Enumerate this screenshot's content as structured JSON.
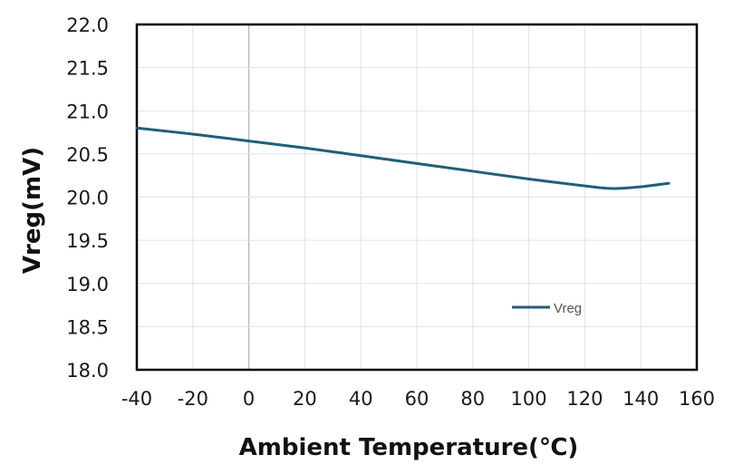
{
  "chart_data": {
    "type": "line",
    "xlabel": "Ambient Temperature(℃)",
    "ylabel": "Vreg(mV)",
    "xlim": [
      -40,
      160
    ],
    "ylim": [
      18.0,
      22.0
    ],
    "x_ticks": [
      "-40",
      "-20",
      "0",
      "20",
      "40",
      "60",
      "80",
      "100",
      "120",
      "140",
      "160"
    ],
    "y_ticks": [
      "18.0",
      "18.5",
      "19.0",
      "19.5",
      "20.0",
      "20.5",
      "21.0",
      "21.5",
      "22.0"
    ],
    "grid": true,
    "legend_position": "lower-right",
    "series": [
      {
        "name": "Vreg",
        "color": "#1f5f7a",
        "x": [
          -40,
          -20,
          0,
          20,
          40,
          60,
          80,
          100,
          120,
          130,
          140,
          150
        ],
        "y": [
          20.8,
          20.73,
          20.65,
          20.57,
          20.48,
          20.39,
          20.3,
          20.21,
          20.13,
          20.1,
          20.12,
          20.16
        ]
      }
    ]
  }
}
